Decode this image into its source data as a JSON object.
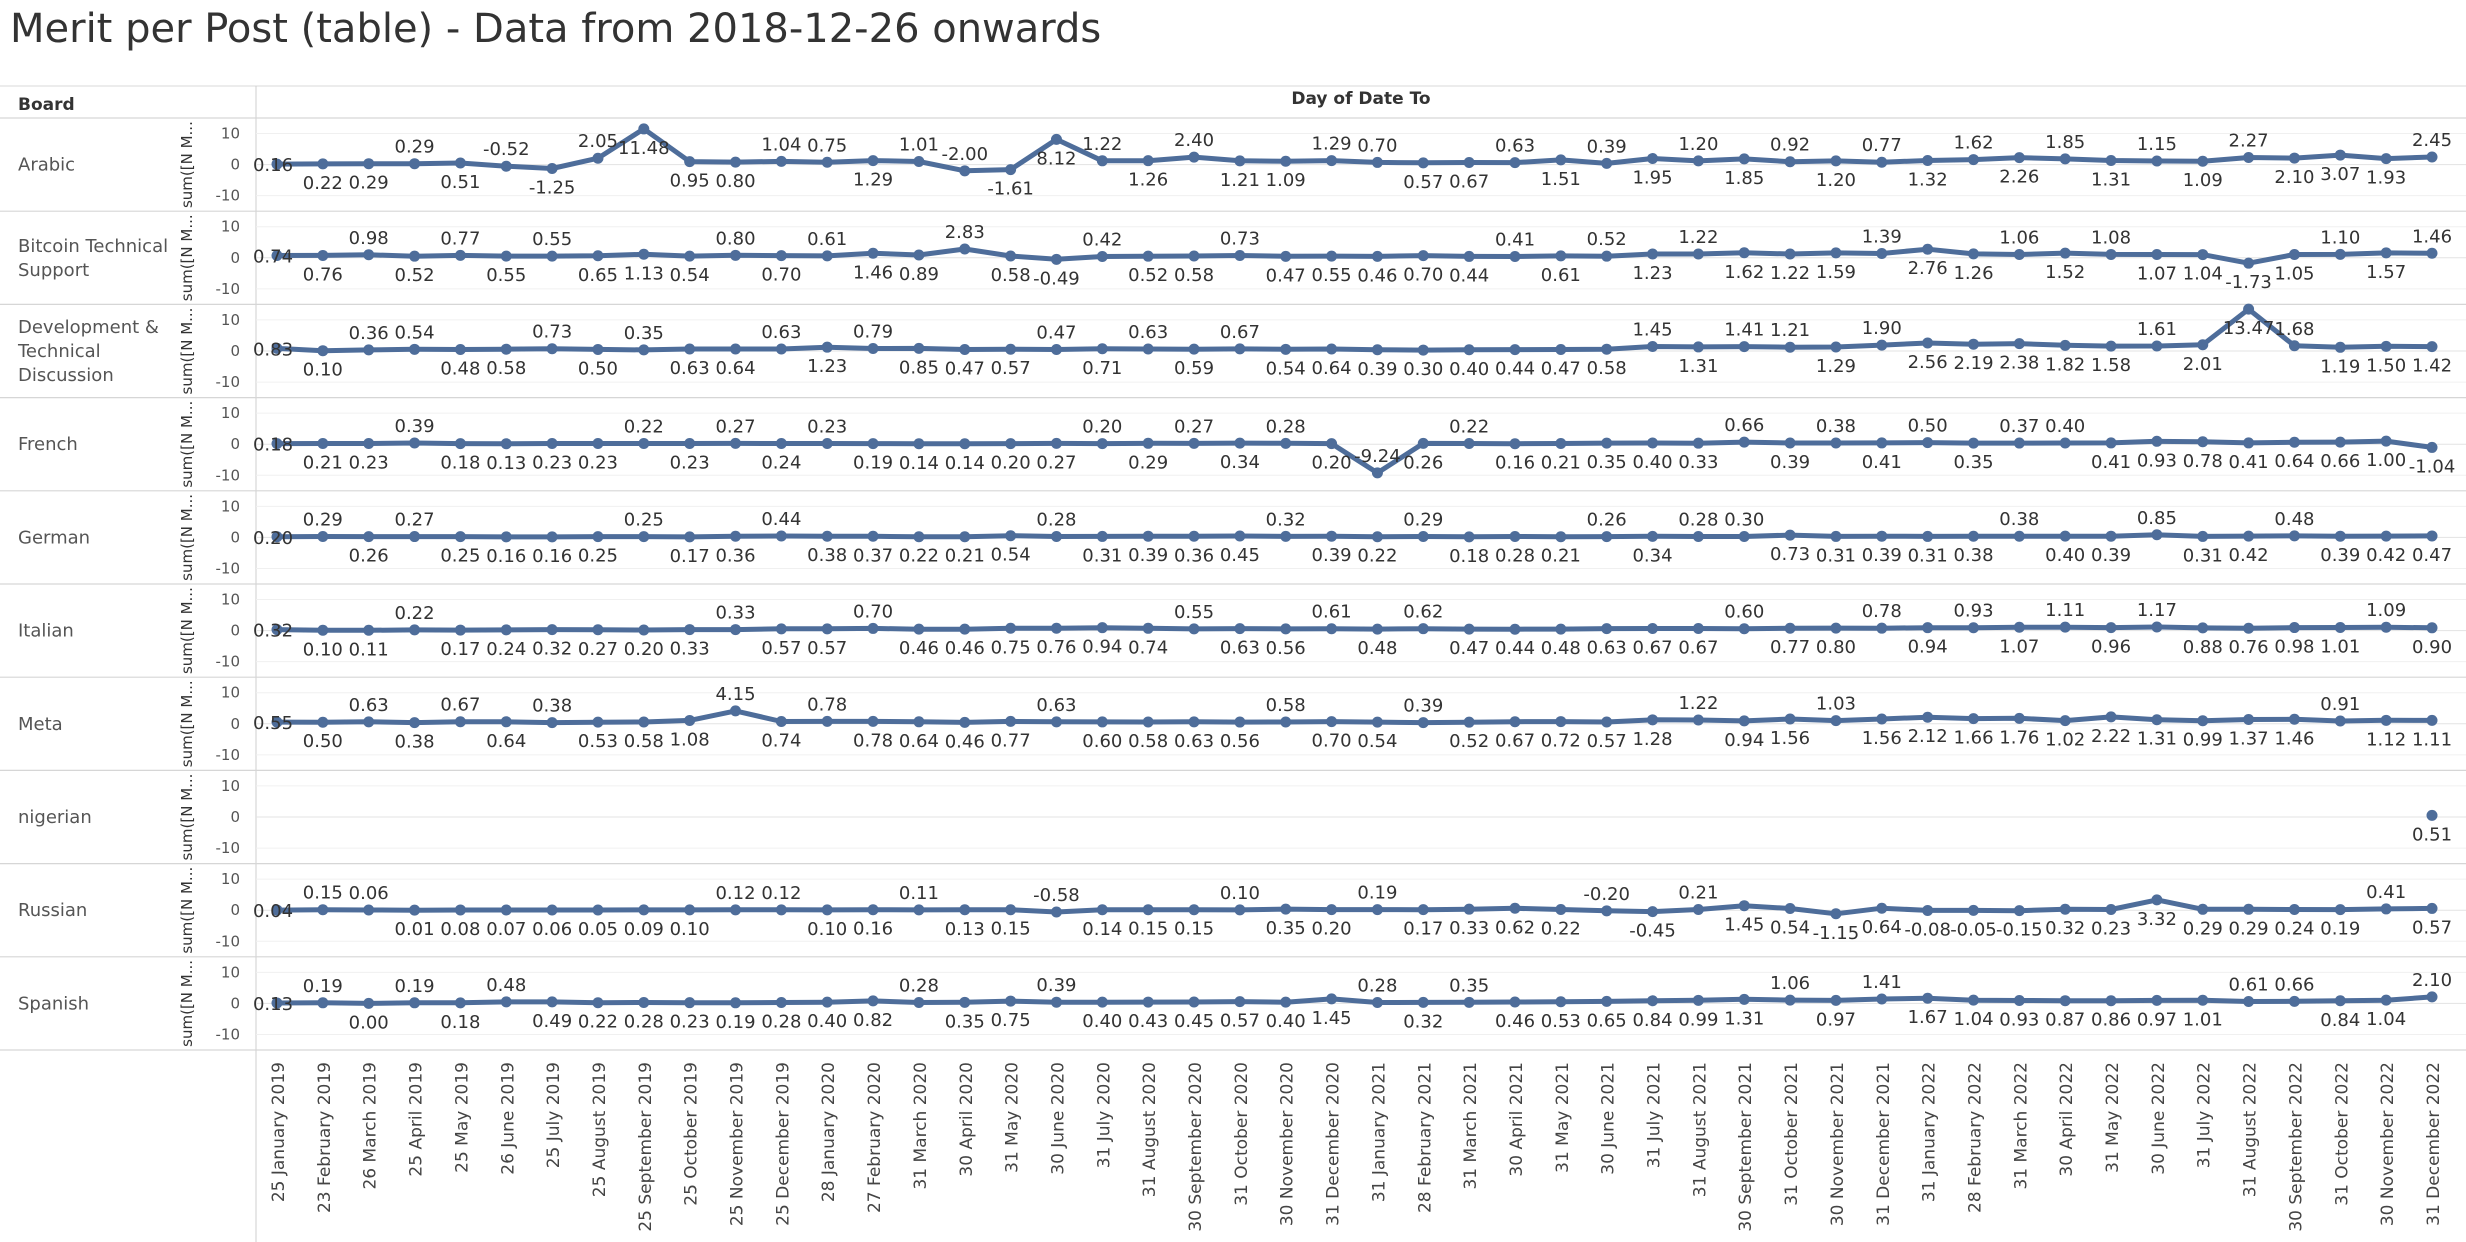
{
  "title": "Merit per Post (table) - Data from 2018-12-26 onwards",
  "chart_data": {
    "type": "line",
    "row_header": "Board",
    "column_header": "Day of Date To",
    "measure_label": "sum([N M...",
    "ylim": [
      -15,
      15
    ],
    "yticks": [
      10,
      0,
      -10
    ],
    "color": "#4e6d9a",
    "dates": [
      "25 January 2019",
      "23 February 2019",
      "26 March 2019",
      "25 April 2019",
      "25 May 2019",
      "26 June 2019",
      "25 July 2019",
      "25 August 2019",
      "25 September 2019",
      "25 October 2019",
      "25 November 2019",
      "25 December 2019",
      "28 January 2020",
      "27 February 2020",
      "31 March 2020",
      "30 April 2020",
      "31 May 2020",
      "30 June 2020",
      "31 July 2020",
      "31 August 2020",
      "30 September 2020",
      "31 October 2020",
      "30 November 2020",
      "31 December 2020",
      "31 January 2021",
      "28 February 2021",
      "31 March 2021",
      "30 April 2021",
      "31 May 2021",
      "30 June 2021",
      "31 July 2021",
      "31 August 2021",
      "30 September 2021",
      "31 October 2021",
      "30 November 2021",
      "31 December 2021",
      "31 January 2022",
      "28 February 2022",
      "31 March 2022",
      "30 April 2022",
      "31 May 2022",
      "30 June 2022",
      "31 July 2022",
      "31 August 2022",
      "30 September 2022",
      "31 October 2022",
      "30 November 2022",
      "31 December 2022"
    ],
    "series": [
      {
        "name": "Arabic",
        "lines": [
          "Arabic"
        ],
        "values": [
          0.16,
          0.22,
          0.29,
          0.29,
          0.51,
          -0.52,
          -1.25,
          2.05,
          11.48,
          0.95,
          0.8,
          1.04,
          0.75,
          1.29,
          1.01,
          -2.0,
          -1.61,
          8.12,
          1.22,
          1.26,
          2.4,
          1.21,
          1.09,
          1.29,
          0.7,
          0.57,
          0.67,
          0.63,
          1.51,
          0.39,
          1.95,
          1.2,
          1.85,
          0.92,
          1.2,
          0.77,
          1.32,
          1.62,
          2.26,
          1.85,
          1.31,
          1.15,
          1.09,
          2.27,
          2.1,
          3.07,
          1.93,
          2.45
        ]
      },
      {
        "name": "Bitcoin Technical Support",
        "lines": [
          "Bitcoin Technical",
          "Support"
        ],
        "values": [
          0.74,
          0.76,
          0.98,
          0.52,
          0.77,
          0.55,
          0.55,
          0.65,
          1.13,
          0.54,
          0.8,
          0.7,
          0.61,
          1.46,
          0.89,
          2.83,
          0.58,
          -0.49,
          0.42,
          0.52,
          0.58,
          0.73,
          0.47,
          0.55,
          0.46,
          0.7,
          0.44,
          0.41,
          0.61,
          0.52,
          1.23,
          1.22,
          1.62,
          1.22,
          1.59,
          1.39,
          2.76,
          1.26,
          1.06,
          1.52,
          1.08,
          1.07,
          1.04,
          -1.73,
          1.05,
          1.1,
          1.57,
          1.46
        ]
      },
      {
        "name": "Development & Technical Discussion",
        "lines": [
          "Development &",
          "Technical",
          "Discussion"
        ],
        "values": [
          0.83,
          0.1,
          0.36,
          0.54,
          0.48,
          0.58,
          0.73,
          0.5,
          0.35,
          0.63,
          0.64,
          0.63,
          1.23,
          0.79,
          0.85,
          0.47,
          0.57,
          0.47,
          0.71,
          0.63,
          0.59,
          0.67,
          0.54,
          0.64,
          0.39,
          0.3,
          0.4,
          0.44,
          0.47,
          0.58,
          1.45,
          1.31,
          1.41,
          1.21,
          1.29,
          1.9,
          2.56,
          2.19,
          2.38,
          1.82,
          1.58,
          1.61,
          2.01,
          13.47,
          1.68,
          1.19,
          1.5,
          1.42
        ]
      },
      {
        "name": "French",
        "lines": [
          "French"
        ],
        "values": [
          0.18,
          0.21,
          0.23,
          0.39,
          0.18,
          0.13,
          0.23,
          0.23,
          0.22,
          0.23,
          0.27,
          0.24,
          0.23,
          0.19,
          0.14,
          0.14,
          0.2,
          0.27,
          0.2,
          0.29,
          0.27,
          0.34,
          0.28,
          0.2,
          -9.24,
          0.26,
          0.22,
          0.16,
          0.21,
          0.35,
          0.4,
          0.33,
          0.66,
          0.39,
          0.38,
          0.41,
          0.5,
          0.35,
          0.37,
          0.4,
          0.41,
          0.93,
          0.78,
          0.41,
          0.64,
          0.66,
          1.0,
          -1.04
        ]
      },
      {
        "name": "German",
        "lines": [
          "German"
        ],
        "values": [
          0.2,
          0.29,
          0.26,
          0.27,
          0.25,
          0.16,
          0.16,
          0.25,
          0.25,
          0.17,
          0.36,
          0.44,
          0.38,
          0.37,
          0.22,
          0.21,
          0.54,
          0.28,
          0.31,
          0.39,
          0.36,
          0.45,
          0.32,
          0.39,
          0.22,
          0.29,
          0.18,
          0.28,
          0.21,
          0.26,
          0.34,
          0.28,
          0.3,
          0.73,
          0.31,
          0.39,
          0.31,
          0.38,
          0.38,
          0.4,
          0.39,
          0.85,
          0.31,
          0.42,
          0.48,
          0.39,
          0.42,
          0.47
        ]
      },
      {
        "name": "Italian",
        "lines": [
          "Italian"
        ],
        "values": [
          0.32,
          0.1,
          0.11,
          0.22,
          0.17,
          0.24,
          0.32,
          0.27,
          0.2,
          0.33,
          0.33,
          0.57,
          0.57,
          0.7,
          0.46,
          0.46,
          0.75,
          0.76,
          0.94,
          0.74,
          0.55,
          0.63,
          0.56,
          0.61,
          0.48,
          0.62,
          0.47,
          0.44,
          0.48,
          0.63,
          0.67,
          0.67,
          0.6,
          0.77,
          0.8,
          0.78,
          0.94,
          0.93,
          1.07,
          1.11,
          0.96,
          1.17,
          0.88,
          0.76,
          0.98,
          1.01,
          1.09,
          0.9
        ]
      },
      {
        "name": "Meta",
        "lines": [
          "Meta"
        ],
        "values": [
          0.55,
          0.5,
          0.63,
          0.38,
          0.67,
          0.64,
          0.38,
          0.53,
          0.58,
          1.08,
          4.15,
          0.74,
          0.78,
          0.78,
          0.64,
          0.46,
          0.77,
          0.63,
          0.6,
          0.58,
          0.63,
          0.56,
          0.58,
          0.7,
          0.54,
          0.39,
          0.52,
          0.67,
          0.72,
          0.57,
          1.28,
          1.22,
          0.94,
          1.56,
          1.03,
          1.56,
          2.12,
          1.66,
          1.76,
          1.02,
          2.22,
          1.31,
          0.99,
          1.37,
          1.46,
          0.91,
          1.12,
          1.11
        ]
      },
      {
        "name": "nigerian",
        "lines": [
          "nigerian"
        ],
        "values": [
          null,
          null,
          null,
          null,
          null,
          null,
          null,
          null,
          null,
          null,
          null,
          null,
          null,
          null,
          null,
          null,
          null,
          null,
          null,
          null,
          null,
          null,
          null,
          null,
          null,
          null,
          null,
          null,
          null,
          null,
          null,
          null,
          null,
          null,
          null,
          null,
          null,
          null,
          null,
          null,
          null,
          null,
          null,
          null,
          null,
          null,
          null,
          0.51
        ]
      },
      {
        "name": "Russian",
        "lines": [
          "Russian"
        ],
        "values": [
          0.04,
          0.15,
          0.06,
          0.01,
          0.08,
          0.07,
          0.06,
          0.05,
          0.09,
          0.1,
          0.12,
          0.12,
          0.1,
          0.16,
          0.11,
          0.13,
          0.15,
          -0.58,
          0.14,
          0.15,
          0.15,
          0.1,
          0.35,
          0.2,
          0.19,
          0.17,
          0.33,
          0.62,
          0.22,
          -0.2,
          -0.45,
          0.21,
          1.45,
          0.54,
          -1.15,
          0.64,
          -0.08,
          -0.05,
          -0.15,
          0.32,
          0.23,
          3.32,
          0.29,
          0.29,
          0.24,
          0.19,
          0.41,
          0.57
        ]
      },
      {
        "name": "Spanish",
        "lines": [
          "Spanish"
        ],
        "values": [
          0.13,
          0.19,
          0.0,
          0.19,
          0.18,
          0.48,
          0.49,
          0.22,
          0.28,
          0.23,
          0.19,
          0.28,
          0.4,
          0.82,
          0.28,
          0.35,
          0.75,
          0.39,
          0.4,
          0.43,
          0.45,
          0.57,
          0.4,
          1.45,
          0.28,
          0.32,
          0.35,
          0.46,
          0.53,
          0.65,
          0.84,
          0.99,
          1.31,
          1.06,
          0.97,
          1.41,
          1.67,
          1.04,
          0.93,
          0.87,
          0.86,
          0.97,
          1.01,
          0.61,
          0.66,
          0.84,
          1.04,
          2.1
        ]
      }
    ],
    "label_positions": [
      "xbbabababbbaabaabbababbaabbabababababababababbbaba",
      "xbabababbbababbabbabbabbbbbabababbbabbababbbbabaabab",
      "xbaabbababbababbbabababbbbbbbbabaababbbbbabbab",
      "xbbabbbbabababbbbbabababababbbbbabababaab",
      "xababbbbabbabbbbbabbbbabbabbbabaabbbbbabbabbab",
      "xbbabbbbbbabbabbbbbbabbababbbbbbabbababababbbba",
      "xbabababbbababbbbabbbbabbabbbbbabbabbbbbbbbbbab",
      "a",
      "xaabbbbbbbaabbabbabbbabbabbbbababbbbbbbbbbbbbba",
      "xabababbbbbbbbabbabbbbbbababbbbbbababbbbbbbaabba"
    ]
  }
}
